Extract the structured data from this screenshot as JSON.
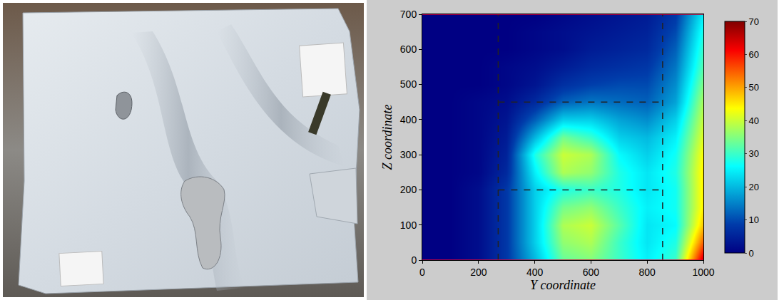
{
  "chart_data": {
    "type": "heatmap",
    "x_label": "Y coordinate",
    "y_label": "Z coordinate",
    "color": "Jet",
    "x": [
      0,
      100,
      200,
      300,
      400,
      500,
      600,
      700,
      800,
      900,
      1000
    ],
    "y": [
      0,
      50,
      100,
      150,
      200,
      250,
      300,
      350,
      400,
      450,
      500,
      550,
      600,
      650,
      700
    ],
    "cells": [
      [
        0,
        0,
        2,
        8,
        20,
        33,
        35,
        30,
        25,
        30,
        65
      ],
      [
        0,
        0,
        2,
        8,
        22,
        36,
        38,
        30,
        24,
        28,
        55
      ],
      [
        0,
        0,
        2,
        8,
        22,
        38,
        40,
        32,
        24,
        26,
        48
      ],
      [
        0,
        0,
        2,
        8,
        22,
        34,
        36,
        30,
        25,
        27,
        45
      ],
      [
        0,
        0,
        2,
        8,
        22,
        28,
        30,
        28,
        24,
        27,
        45
      ],
      [
        0,
        0,
        1,
        6,
        25,
        38,
        36,
        28,
        24,
        28,
        45
      ],
      [
        0,
        0,
        1,
        5,
        28,
        40,
        38,
        26,
        22,
        27,
        44
      ],
      [
        0,
        0,
        1,
        4,
        20,
        34,
        30,
        22,
        20,
        25,
        42
      ],
      [
        0,
        0,
        1,
        3,
        12,
        22,
        22,
        18,
        16,
        22,
        40
      ],
      [
        0,
        0,
        1,
        2,
        6,
        12,
        14,
        13,
        12,
        18,
        38
      ],
      [
        0,
        0,
        0,
        1,
        3,
        7,
        9,
        10,
        10,
        16,
        35
      ],
      [
        0,
        0,
        0,
        1,
        2,
        4,
        6,
        7,
        8,
        14,
        32
      ],
      [
        0,
        0,
        0,
        0,
        1,
        2,
        4,
        5,
        6,
        12,
        30
      ],
      [
        0,
        0,
        0,
        0,
        1,
        2,
        3,
        4,
        5,
        10,
        28
      ],
      [
        0,
        0,
        0,
        0,
        0,
        1,
        2,
        3,
        4,
        8,
        25
      ]
    ],
    "xlim": [
      0,
      1000
    ],
    "ylim": [
      0,
      700
    ],
    "xticks": [
      0,
      200,
      400,
      600,
      800,
      1000
    ],
    "yticks": [
      0,
      100,
      200,
      300,
      400,
      500,
      600,
      700
    ],
    "colorbar_range": [
      0,
      70
    ],
    "colorbar_ticks": [
      0,
      10,
      20,
      30,
      40,
      50,
      60,
      70
    ],
    "dashed_lines": {
      "x": [
        270,
        855
      ],
      "y": [
        200,
        450
      ]
    },
    "line_style": "dash"
  }
}
